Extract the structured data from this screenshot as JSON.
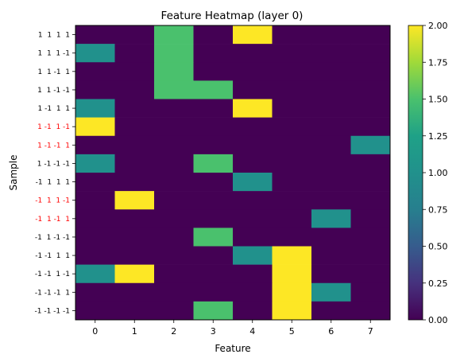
{
  "chart_data": {
    "type": "heatmap",
    "title": "Feature Heatmap (layer 0)",
    "xlabel": "Feature",
    "ylabel": "Sample",
    "x_categories": [
      "0",
      "1",
      "2",
      "3",
      "4",
      "5",
      "6",
      "7"
    ],
    "y_categories": [
      {
        "label": "1  1  1  1",
        "color": "#000000"
      },
      {
        "label": "1  1  1 -1",
        "color": "#000000"
      },
      {
        "label": "1  1 -1  1",
        "color": "#000000"
      },
      {
        "label": "1  1 -1 -1",
        "color": "#000000"
      },
      {
        "label": "1 -1  1  1",
        "color": "#000000"
      },
      {
        "label": "1 -1  1 -1",
        "color": "#ff0000"
      },
      {
        "label": "1 -1 -1  1",
        "color": "#ff0000"
      },
      {
        "label": "1 -1 -1 -1",
        "color": "#000000"
      },
      {
        "label": "-1  1  1  1",
        "color": "#000000"
      },
      {
        "label": "-1  1  1 -1",
        "color": "#ff0000"
      },
      {
        "label": "-1  1 -1  1",
        "color": "#ff0000"
      },
      {
        "label": "-1  1 -1 -1",
        "color": "#000000"
      },
      {
        "label": "-1 -1  1  1",
        "color": "#000000"
      },
      {
        "label": "-1 -1  1 -1",
        "color": "#000000"
      },
      {
        "label": "-1 -1 -1  1",
        "color": "#000000"
      },
      {
        "label": "-1 -1 -1 -1",
        "color": "#000000"
      }
    ],
    "values": [
      [
        0,
        0,
        1.5,
        0,
        2,
        0,
        0,
        0
      ],
      [
        1,
        0,
        1.5,
        0,
        0,
        0,
        0,
        0
      ],
      [
        0,
        0,
        1.5,
        0,
        0,
        0,
        0,
        0
      ],
      [
        0,
        0,
        1.5,
        1.5,
        0,
        0,
        0,
        0
      ],
      [
        1,
        0,
        0,
        0,
        2,
        0,
        0,
        0
      ],
      [
        2,
        0,
        0,
        0,
        0,
        0,
        0,
        0
      ],
      [
        0,
        0,
        0,
        0,
        0,
        0,
        0,
        1
      ],
      [
        1,
        0,
        0,
        1.5,
        0,
        0,
        0,
        0
      ],
      [
        0,
        0,
        0,
        0,
        1,
        0,
        0,
        0
      ],
      [
        0,
        2,
        0,
        0,
        0,
        0,
        0,
        0
      ],
      [
        0,
        0,
        0,
        0,
        0,
        0,
        1,
        0
      ],
      [
        0,
        0,
        0,
        1.5,
        0,
        0,
        0,
        0
      ],
      [
        0,
        0,
        0,
        0,
        1,
        2,
        0,
        0
      ],
      [
        1,
        2,
        0,
        0,
        0,
        2,
        0,
        0
      ],
      [
        0,
        0,
        0,
        0,
        0,
        2,
        1,
        0
      ],
      [
        0,
        0,
        0,
        1.5,
        0,
        2,
        0,
        0
      ]
    ],
    "colormap": "viridis",
    "vmin": 0,
    "vmax": 2,
    "colorbar_ticks": [
      "0.00",
      "0.25",
      "0.50",
      "0.75",
      "1.00",
      "1.25",
      "1.50",
      "1.75",
      "2.00"
    ],
    "grid": false
  }
}
